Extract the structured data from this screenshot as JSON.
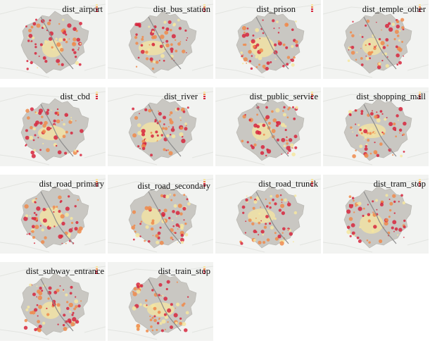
{
  "panels": [
    {
      "title": "dist_airport"
    },
    {
      "title": "dist_bus_station"
    },
    {
      "title": "dist_prison"
    },
    {
      "title": "dist_temple_other"
    },
    {
      "title": "dist_cbd"
    },
    {
      "title": "dist_river"
    },
    {
      "title": "dist_public_service"
    },
    {
      "title": "dist_shopping_mall"
    },
    {
      "title": "dist_road_primary"
    },
    {
      "title": "dist_road_secondary"
    },
    {
      "title": "dist_road_trunck"
    },
    {
      "title": "dist_tram_stop"
    },
    {
      "title": "dist_subway_entrance"
    },
    {
      "title": "dist_train_stop"
    }
  ],
  "colors": {
    "map_bg": "#f2f3f1",
    "city": "#c9c7c2",
    "hot": "#d7263d",
    "warm": "#f08a4b",
    "pale": "#f6e6a0",
    "river": "#8d8d8d"
  }
}
